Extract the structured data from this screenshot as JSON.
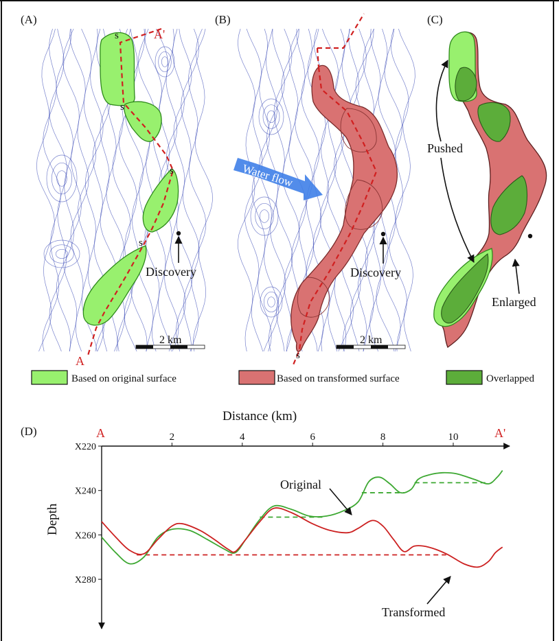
{
  "panels": {
    "a": {
      "label": "(A)",
      "point_a": "A",
      "point_a_prime": "A'",
      "spill_label": "s",
      "discovery_label": "Discovery",
      "scale_label": "2 km"
    },
    "b": {
      "label": "(B)",
      "spill_label": "s",
      "discovery_label": "Discovery",
      "scale_label": "2 km",
      "flow_label": "Water flow"
    },
    "c": {
      "label": "(C)",
      "pushed_label": "Pushed",
      "enlarged_label": "Enlarged"
    }
  },
  "legend": {
    "original": {
      "label": "Based on original surface",
      "color": "#98f06e"
    },
    "transformed": {
      "label": "Based on transformed surface",
      "color": "#d97272"
    },
    "overlapped": {
      "label": "Overlapped",
      "color": "#5cad3a"
    }
  },
  "colors": {
    "contour": "#3f4fb8",
    "section_line": "#d02020",
    "flow_arrow": "#3f7fe8"
  },
  "chart_data": {
    "type": "line",
    "panel_label": "(D)",
    "title": "Distance (km)",
    "xlabel": "Distance (km)",
    "ylabel": "Depth",
    "x_start_label": "A",
    "x_end_label": "A'",
    "x_ticks": [
      2,
      4,
      6,
      8,
      10
    ],
    "y_ticks": [
      "X220",
      "X240",
      "X260",
      "X280"
    ],
    "xlim": [
      0,
      11.5
    ],
    "ylim": [
      220,
      290
    ],
    "grid": false,
    "series": [
      {
        "name": "Original",
        "color": "#3da832",
        "points": [
          [
            0,
            261
          ],
          [
            0.4,
            268
          ],
          [
            0.8,
            273
          ],
          [
            1.2,
            270
          ],
          [
            1.6,
            261
          ],
          [
            2.0,
            257.5
          ],
          [
            2.5,
            258
          ],
          [
            3.0,
            262
          ],
          [
            3.5,
            266.5
          ],
          [
            3.8,
            268
          ],
          [
            4.1,
            262
          ],
          [
            4.5,
            253
          ],
          [
            4.9,
            247
          ],
          [
            5.4,
            248.5
          ],
          [
            5.9,
            251.5
          ],
          [
            6.4,
            251.5
          ],
          [
            6.9,
            249
          ],
          [
            7.3,
            245
          ],
          [
            7.6,
            236
          ],
          [
            7.9,
            234
          ],
          [
            8.2,
            237
          ],
          [
            8.5,
            241
          ],
          [
            8.8,
            239.5
          ],
          [
            9.0,
            235
          ],
          [
            9.3,
            233
          ],
          [
            9.7,
            232
          ],
          [
            10.1,
            232.5
          ],
          [
            10.6,
            235
          ],
          [
            11.0,
            237
          ],
          [
            11.25,
            234
          ],
          [
            11.4,
            231
          ]
        ]
      },
      {
        "name": "Transformed",
        "color": "#cc2020",
        "points": [
          [
            0,
            254
          ],
          [
            0.4,
            261
          ],
          [
            0.8,
            267
          ],
          [
            1.2,
            268.5
          ],
          [
            1.6,
            262
          ],
          [
            2.0,
            256
          ],
          [
            2.3,
            255
          ],
          [
            2.8,
            258
          ],
          [
            3.2,
            262
          ],
          [
            3.6,
            266.5
          ],
          [
            3.8,
            267.5
          ],
          [
            4.1,
            262
          ],
          [
            4.5,
            254
          ],
          [
            4.9,
            248
          ],
          [
            5.4,
            250
          ],
          [
            6.0,
            255
          ],
          [
            6.5,
            258
          ],
          [
            7.0,
            259
          ],
          [
            7.3,
            257
          ],
          [
            7.7,
            253.5
          ],
          [
            8.0,
            256
          ],
          [
            8.3,
            262
          ],
          [
            8.6,
            267.5
          ],
          [
            8.9,
            265
          ],
          [
            9.3,
            265.5
          ],
          [
            9.8,
            268.5
          ],
          [
            10.3,
            273
          ],
          [
            10.7,
            274.5
          ],
          [
            11.0,
            272
          ],
          [
            11.2,
            268
          ],
          [
            11.4,
            265.5
          ]
        ]
      }
    ],
    "spill_levels": [
      {
        "series": "Original",
        "x": [
          4.5,
          6.3
        ],
        "y": 252
      },
      {
        "series": "Original",
        "x": [
          7.4,
          8.6
        ],
        "y": 241
      },
      {
        "series": "Original",
        "x": [
          8.9,
          11.0
        ],
        "y": 236.5
      },
      {
        "series": "Transformed",
        "x": [
          1.0,
          9.8
        ],
        "y": 269
      }
    ],
    "annotations": [
      {
        "text": "Original",
        "points_to": [
          6.6,
          252
        ]
      },
      {
        "text": "Transformed",
        "points_to": [
          9.8,
          268.5
        ]
      }
    ]
  }
}
